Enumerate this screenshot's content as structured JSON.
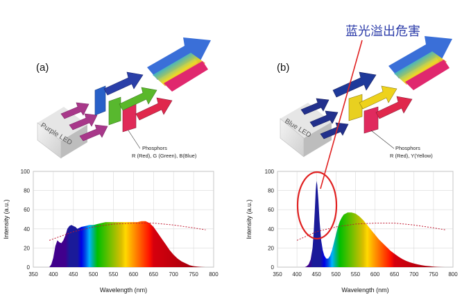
{
  "panels": {
    "a": {
      "label": "(a)",
      "led_label": "Purple LED",
      "phosphors_title": "Phosphors",
      "phosphors_desc": "R (Red), G (Green), B(Blue)"
    },
    "b": {
      "label": "(b)",
      "led_label": "Blue LED",
      "phosphors_title": "Phosphors",
      "phosphors_desc": "R (Red), Y(Yellow)"
    }
  },
  "annotation": {
    "text": "蓝光溢出危害",
    "color": "#e02020"
  },
  "chart_data": [
    {
      "type": "area",
      "id": "spectrum-a",
      "title": "",
      "xlabel": "Wavelength (nm)",
      "ylabel": "Intensity (a.u.)",
      "xlim": [
        350,
        800
      ],
      "ylim": [
        0,
        100
      ],
      "x_ticks": [
        "350",
        "400",
        "450",
        "500",
        "550",
        "600",
        "650",
        "700",
        "750",
        "800"
      ],
      "y_ticks": [
        "0",
        "20",
        "40",
        "60",
        "80",
        "100"
      ],
      "grid": true,
      "series": [
        {
          "name": "spectrum",
          "x": [
            390,
            395,
            400,
            405,
            410,
            415,
            420,
            425,
            430,
            435,
            440,
            445,
            450,
            455,
            460,
            465,
            470,
            480,
            490,
            500,
            510,
            520,
            530,
            540,
            550,
            560,
            570,
            580,
            590,
            600,
            610,
            620,
            630,
            640,
            650,
            660,
            670,
            680,
            690,
            700,
            710,
            720,
            730,
            740,
            750,
            760,
            770,
            780
          ],
          "y": [
            0,
            3,
            10,
            22,
            28,
            26,
            25,
            28,
            33,
            40,
            43,
            44,
            43,
            42,
            40,
            41,
            42,
            43,
            44,
            44,
            45,
            46,
            47,
            47,
            47,
            47,
            47,
            47,
            47,
            47,
            47,
            48,
            48,
            46,
            42,
            36,
            30,
            24,
            18,
            13,
            9,
            6,
            4,
            2,
            1,
            0.5,
            0.2,
            0
          ]
        },
        {
          "name": "reference-dotted",
          "x": [
            390,
            450,
            500,
            550,
            600,
            650,
            700,
            750,
            780
          ],
          "y": [
            28,
            37,
            42,
            45,
            46,
            46,
            44,
            41,
            39
          ]
        }
      ]
    },
    {
      "type": "area",
      "id": "spectrum-b",
      "title": "",
      "xlabel": "Wavelength (nm)",
      "ylabel": "Intensity (a.u.)",
      "xlim": [
        350,
        800
      ],
      "ylim": [
        0,
        100
      ],
      "x_ticks": [
        "350",
        "400",
        "450",
        "500",
        "550",
        "600",
        "650",
        "700",
        "750",
        "800"
      ],
      "y_ticks": [
        "0",
        "20",
        "40",
        "60",
        "80",
        "100"
      ],
      "grid": true,
      "series": [
        {
          "name": "spectrum",
          "x": [
            420,
            425,
            430,
            435,
            440,
            443,
            446,
            448,
            450,
            452,
            455,
            458,
            462,
            466,
            470,
            475,
            480,
            485,
            490,
            495,
            500,
            505,
            510,
            515,
            520,
            530,
            540,
            550,
            560,
            570,
            580,
            590,
            600,
            610,
            620,
            630,
            640,
            650,
            660,
            670,
            680,
            690,
            700,
            710,
            720,
            730,
            740,
            750,
            760,
            770,
            780
          ],
          "y": [
            0,
            1,
            3,
            8,
            20,
            38,
            62,
            80,
            90,
            86,
            70,
            48,
            28,
            18,
            12,
            9,
            9,
            12,
            18,
            26,
            34,
            42,
            48,
            52,
            55,
            57,
            57,
            56,
            53,
            49,
            44,
            39,
            34,
            29,
            25,
            21,
            17,
            14,
            11,
            8.5,
            6.5,
            5,
            3.8,
            2.8,
            2,
            1.4,
            1,
            0.6,
            0.3,
            0.1,
            0
          ]
        },
        {
          "name": "reference-dotted",
          "x": [
            400,
            450,
            500,
            550,
            600,
            650,
            700,
            750,
            780
          ],
          "y": [
            28,
            37,
            42,
            45,
            46,
            46,
            44,
            41,
            39
          ]
        }
      ]
    }
  ]
}
